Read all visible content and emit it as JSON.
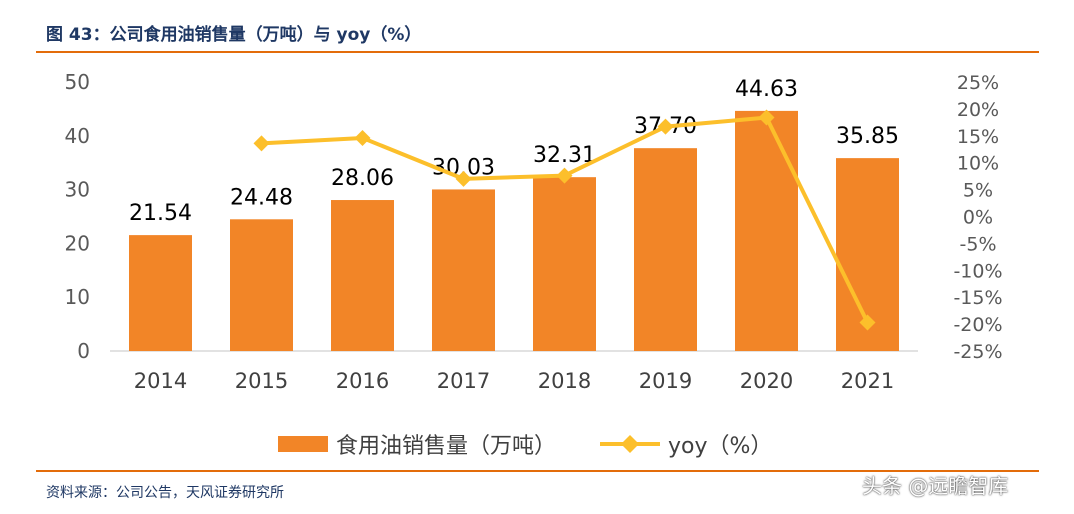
{
  "header": {
    "title": "图 43：公司食用油销售量（万吨）与 yoy（%）"
  },
  "footer": {
    "source": "资料来源：公司公告，天风证券研究所",
    "watermark": "头条 @远瞻智库"
  },
  "chart_data": {
    "type": "bar",
    "categories": [
      "2014",
      "2015",
      "2016",
      "2017",
      "2018",
      "2019",
      "2020",
      "2021"
    ],
    "series": [
      {
        "name": "食用油销售量（万吨）",
        "type": "bar",
        "axis": "left",
        "color": "#f28527",
        "values": [
          21.54,
          24.48,
          28.06,
          30.03,
          32.31,
          37.7,
          44.63,
          35.85
        ],
        "labels": [
          "21.54",
          "24.48",
          "28.06",
          "30.03",
          "32.31",
          "37.70",
          "44.63",
          "35.85"
        ]
      },
      {
        "name": "yoy（%）",
        "type": "line",
        "axis": "right",
        "color": "#fcbf2b",
        "values": [
          null,
          13.6,
          14.6,
          7.0,
          7.6,
          16.7,
          18.4,
          -19.7
        ]
      }
    ],
    "y_left": {
      "min": 0,
      "max": 50,
      "ticks": [
        0,
        10,
        20,
        30,
        40,
        50
      ],
      "tick_labels": [
        "0",
        "10",
        "20",
        "30",
        "40",
        "50"
      ]
    },
    "y_right": {
      "min": -25,
      "max": 25,
      "ticks": [
        25,
        20,
        15,
        10,
        5,
        0,
        -5,
        -10,
        -15,
        -20,
        -25
      ],
      "tick_labels": [
        "25%",
        "20%",
        "15%",
        "10%",
        "5%",
        "0%",
        "-5%",
        "-10%",
        "-15%",
        "-20%",
        "-25%"
      ]
    },
    "grid": false,
    "legend": {
      "position": "bottom",
      "entries": [
        "食用油销售量（万吨）",
        "yoy（%）"
      ]
    }
  }
}
